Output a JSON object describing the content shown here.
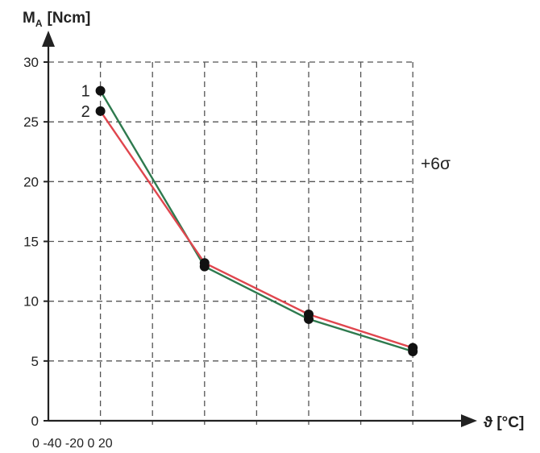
{
  "chart_data": {
    "type": "line",
    "ylabel": "M",
    "ylabel_sub": "A",
    "ylabel_unit": "[Ncm]",
    "xlabel": "ϑ [°C]",
    "x_tick_text": "0 -40 -20 0 20",
    "y_ticks": [
      "0",
      "5",
      "10",
      "15",
      "20",
      "25",
      "30"
    ],
    "ylim": [
      0,
      30
    ],
    "x_grid_count": 7,
    "grid": true,
    "annotation": "+6σ",
    "series": [
      {
        "name": "1",
        "color": "#2e7a4e",
        "x": [
          1,
          3,
          5,
          7
        ],
        "values": [
          27.6,
          12.9,
          8.5,
          5.8
        ]
      },
      {
        "name": "2",
        "color": "#e0464e",
        "x": [
          1,
          3,
          5,
          7
        ],
        "values": [
          25.9,
          13.2,
          8.9,
          6.1
        ]
      }
    ]
  }
}
